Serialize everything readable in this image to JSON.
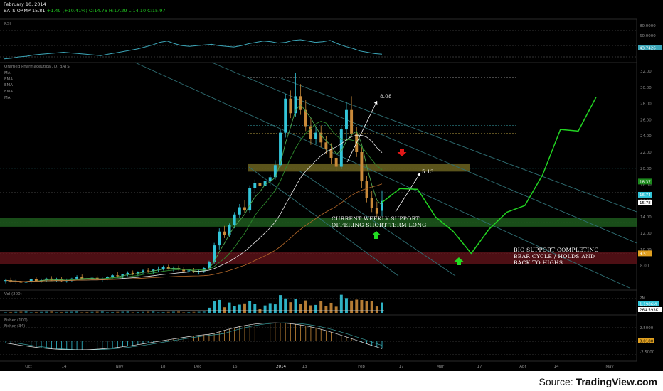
{
  "header": {
    "date": "February 10, 2014",
    "symbol": "BATS:ORMP",
    "last": "15.81",
    "change": "+1.49 (+10.41%)",
    "open": "O:14.76",
    "high": "H:17.29",
    "low": "L:14.10",
    "close": "C:15.97"
  },
  "panes": {
    "rsi": {
      "label": "RSI",
      "ticks": [
        "80.0000",
        "60.0000",
        "40.0000"
      ],
      "value": "43.7426"
    },
    "main": {
      "label": "Oramed Pharmaceutical, D, BATS",
      "indicators": [
        "MA",
        "EMA",
        "EMA",
        "EMA",
        "MA"
      ],
      "ticks": [
        "32.00",
        "30.00",
        "28.00",
        "26.00",
        "24.00",
        "22.00",
        "20.00",
        "18.00",
        "16.00",
        "14.00",
        "12.00",
        "10.00",
        "8.00"
      ],
      "badges": [
        "18.37",
        "16.74",
        "15.78",
        "9.51"
      ]
    },
    "volume": {
      "label": "Vol (200)",
      "ticks": [
        "2M",
        "1.1986M",
        "264.593K"
      ]
    },
    "fisher": {
      "labels": [
        "Fisher (100)",
        "Fisher (34)"
      ],
      "ticks": [
        "2.5000",
        "0.0180",
        "-2.5000"
      ]
    }
  },
  "xaxis": [
    "Oct",
    "14",
    "Nov",
    "18",
    "Dec",
    "16",
    "2014",
    "13",
    "Feb",
    "17",
    "Mar",
    "17",
    "Apr",
    "14",
    "May"
  ],
  "annotations": {
    "target_high": "8.08",
    "target_low": "5.13",
    "weekly_support": [
      "CURRENT WEEKLY SUPPORT",
      "OFFERING SHORT TERM LONG"
    ],
    "big_support": [
      "BIG SUPPORT COMPLETING",
      "BEAR CYCLE / HOLDS AND",
      "BACK TO HIGHS"
    ]
  },
  "colors": {
    "background": "#000000",
    "up_candle": "#33c5d9",
    "down_candle": "#c98a3a",
    "rsi_line": "#3ca6b8",
    "projection": "#22d322",
    "resistance_zone": "#6b6320",
    "support_zone": "#1d5a1d",
    "big_support_zone": "#5a1218",
    "channel": "#2f6f74",
    "up_arrow": "#22dd22",
    "down_arrow": "#e01818"
  },
  "source": {
    "prefix": "Source: ",
    "brand": "TradingView.com"
  },
  "chart_data": {
    "type": "candlestick",
    "series": [
      {
        "name": "ORMP",
        "values": [
          {
            "o": 6.1,
            "h": 6.4,
            "l": 5.8,
            "c": 6.2
          },
          {
            "o": 6.2,
            "h": 6.5,
            "l": 5.9,
            "c": 6.0
          },
          {
            "o": 6.0,
            "h": 6.3,
            "l": 5.7,
            "c": 6.1
          },
          {
            "o": 6.1,
            "h": 6.3,
            "l": 5.8,
            "c": 5.9
          },
          {
            "o": 5.9,
            "h": 6.2,
            "l": 5.6,
            "c": 6.0
          },
          {
            "o": 6.0,
            "h": 6.4,
            "l": 5.8,
            "c": 6.3
          },
          {
            "o": 6.3,
            "h": 6.6,
            "l": 6.0,
            "c": 6.1
          },
          {
            "o": 6.1,
            "h": 6.4,
            "l": 5.9,
            "c": 6.2
          },
          {
            "o": 6.2,
            "h": 6.5,
            "l": 6.0,
            "c": 6.4
          },
          {
            "o": 6.4,
            "h": 6.7,
            "l": 6.1,
            "c": 6.2
          },
          {
            "o": 6.2,
            "h": 6.5,
            "l": 6.0,
            "c": 6.3
          },
          {
            "o": 6.3,
            "h": 6.6,
            "l": 6.0,
            "c": 6.1
          },
          {
            "o": 6.1,
            "h": 6.4,
            "l": 5.9,
            "c": 6.2
          },
          {
            "o": 6.2,
            "h": 6.5,
            "l": 6.0,
            "c": 6.4
          },
          {
            "o": 6.4,
            "h": 6.8,
            "l": 6.2,
            "c": 6.6
          },
          {
            "o": 6.6,
            "h": 6.9,
            "l": 6.3,
            "c": 6.4
          },
          {
            "o": 6.4,
            "h": 6.7,
            "l": 6.1,
            "c": 6.3
          },
          {
            "o": 6.3,
            "h": 6.6,
            "l": 6.0,
            "c": 6.5
          },
          {
            "o": 6.5,
            "h": 6.8,
            "l": 6.2,
            "c": 6.3
          },
          {
            "o": 6.3,
            "h": 6.6,
            "l": 6.0,
            "c": 6.4
          },
          {
            "o": 6.4,
            "h": 6.7,
            "l": 6.2,
            "c": 6.6
          },
          {
            "o": 6.6,
            "h": 7.0,
            "l": 6.4,
            "c": 6.8
          },
          {
            "o": 6.8,
            "h": 7.2,
            "l": 6.5,
            "c": 6.7
          },
          {
            "o": 6.7,
            "h": 7.0,
            "l": 6.4,
            "c": 6.9
          },
          {
            "o": 6.9,
            "h": 7.3,
            "l": 6.7,
            "c": 7.1
          },
          {
            "o": 7.1,
            "h": 7.4,
            "l": 6.8,
            "c": 7.0
          },
          {
            "o": 7.0,
            "h": 7.3,
            "l": 6.7,
            "c": 7.2
          },
          {
            "o": 7.2,
            "h": 7.6,
            "l": 7.0,
            "c": 7.4
          },
          {
            "o": 7.4,
            "h": 7.7,
            "l": 7.1,
            "c": 7.3
          },
          {
            "o": 7.3,
            "h": 7.6,
            "l": 7.0,
            "c": 7.5
          },
          {
            "o": 7.5,
            "h": 7.9,
            "l": 7.2,
            "c": 7.6
          },
          {
            "o": 7.6,
            "h": 8.0,
            "l": 7.4,
            "c": 7.8
          },
          {
            "o": 7.8,
            "h": 8.1,
            "l": 7.5,
            "c": 7.6
          },
          {
            "o": 7.6,
            "h": 7.9,
            "l": 7.3,
            "c": 7.7
          },
          {
            "o": 7.7,
            "h": 8.0,
            "l": 7.4,
            "c": 7.5
          },
          {
            "o": 7.5,
            "h": 7.8,
            "l": 7.2,
            "c": 7.3
          },
          {
            "o": 7.3,
            "h": 7.6,
            "l": 7.0,
            "c": 7.4
          },
          {
            "o": 7.4,
            "h": 7.7,
            "l": 7.1,
            "c": 7.2
          },
          {
            "o": 7.2,
            "h": 7.5,
            "l": 6.9,
            "c": 7.3
          },
          {
            "o": 7.3,
            "h": 7.8,
            "l": 7.1,
            "c": 7.7
          },
          {
            "o": 7.7,
            "h": 8.6,
            "l": 7.5,
            "c": 8.4
          },
          {
            "o": 8.4,
            "h": 10.8,
            "l": 8.2,
            "c": 10.5
          },
          {
            "o": 10.5,
            "h": 12.6,
            "l": 10.0,
            "c": 12.2
          },
          {
            "o": 12.2,
            "h": 12.9,
            "l": 11.4,
            "c": 11.8
          },
          {
            "o": 11.8,
            "h": 13.2,
            "l": 11.5,
            "c": 13.0
          },
          {
            "o": 13.0,
            "h": 14.6,
            "l": 12.6,
            "c": 14.3
          },
          {
            "o": 14.3,
            "h": 15.6,
            "l": 13.9,
            "c": 15.2
          },
          {
            "o": 15.2,
            "h": 16.1,
            "l": 14.5,
            "c": 14.8
          },
          {
            "o": 14.8,
            "h": 17.9,
            "l": 14.5,
            "c": 17.6
          },
          {
            "o": 17.6,
            "h": 18.6,
            "l": 16.9,
            "c": 18.2
          },
          {
            "o": 18.2,
            "h": 19.0,
            "l": 17.4,
            "c": 17.8
          },
          {
            "o": 17.8,
            "h": 18.7,
            "l": 17.2,
            "c": 18.4
          },
          {
            "o": 18.4,
            "h": 19.2,
            "l": 17.9,
            "c": 18.9
          },
          {
            "o": 18.9,
            "h": 21.0,
            "l": 18.6,
            "c": 20.4
          },
          {
            "o": 20.4,
            "h": 24.8,
            "l": 20.2,
            "c": 24.4
          },
          {
            "o": 24.4,
            "h": 29.2,
            "l": 23.8,
            "c": 28.6
          },
          {
            "o": 28.6,
            "h": 29.6,
            "l": 26.2,
            "c": 26.8
          },
          {
            "o": 26.8,
            "h": 31.8,
            "l": 26.4,
            "c": 28.9
          },
          {
            "o": 28.9,
            "h": 30.4,
            "l": 26.6,
            "c": 27.2
          },
          {
            "o": 27.2,
            "h": 28.4,
            "l": 24.6,
            "c": 25.2
          },
          {
            "o": 25.2,
            "h": 26.2,
            "l": 22.9,
            "c": 23.6
          },
          {
            "o": 23.6,
            "h": 25.1,
            "l": 23.0,
            "c": 24.4
          },
          {
            "o": 24.4,
            "h": 25.3,
            "l": 22.6,
            "c": 23.2
          },
          {
            "o": 23.2,
            "h": 24.0,
            "l": 21.8,
            "c": 22.4
          },
          {
            "o": 22.4,
            "h": 23.1,
            "l": 20.6,
            "c": 21.3
          },
          {
            "o": 21.3,
            "h": 21.8,
            "l": 19.7,
            "c": 20.2
          },
          {
            "o": 20.2,
            "h": 25.2,
            "l": 19.9,
            "c": 24.8
          },
          {
            "o": 24.8,
            "h": 28.2,
            "l": 23.6,
            "c": 27.2
          },
          {
            "o": 27.2,
            "h": 28.9,
            "l": 23.9,
            "c": 24.3
          },
          {
            "o": 24.3,
            "h": 25.1,
            "l": 21.4,
            "c": 22.0
          },
          {
            "o": 22.0,
            "h": 22.6,
            "l": 17.6,
            "c": 18.4
          },
          {
            "o": 18.4,
            "h": 19.1,
            "l": 15.8,
            "c": 16.3
          },
          {
            "o": 16.3,
            "h": 17.2,
            "l": 14.6,
            "c": 15.1
          },
          {
            "o": 15.1,
            "h": 15.9,
            "l": 14.0,
            "c": 14.4
          },
          {
            "o": 14.76,
            "h": 17.29,
            "l": 14.1,
            "c": 15.97
          }
        ]
      }
    ],
    "ylim": [
      7,
      32
    ],
    "projection_path": [
      {
        "x": "2014-02-10",
        "y": 15.8
      },
      {
        "x": "2014-02-17",
        "y": 17.5
      },
      {
        "x": "2014-02-24",
        "y": 17.4
      },
      {
        "x": "2014-03-03",
        "y": 14.0
      },
      {
        "x": "2014-03-10",
        "y": 12.2
      },
      {
        "x": "2014-03-17",
        "y": 9.5
      },
      {
        "x": "2014-03-24",
        "y": 12.5
      },
      {
        "x": "2014-03-31",
        "y": 14.6
      },
      {
        "x": "2014-04-07",
        "y": 15.4
      },
      {
        "x": "2014-04-14",
        "y": 19.2
      },
      {
        "x": "2014-04-21",
        "y": 24.8
      },
      {
        "x": "2014-04-28",
        "y": 24.6
      },
      {
        "x": "2014-05-05",
        "y": 28.8
      }
    ],
    "zones": [
      {
        "name": "resistance",
        "from": 19.6,
        "to": 20.6
      },
      {
        "name": "weekly-support",
        "from": 12.8,
        "to": 13.9
      },
      {
        "name": "big-support",
        "from": 8.2,
        "to": 9.7
      }
    ],
    "rsi": [
      37,
      38,
      40,
      41,
      43,
      44,
      45,
      46,
      47,
      46,
      45,
      44,
      43,
      42,
      44,
      46,
      48,
      50,
      52,
      55,
      58,
      62,
      64,
      60,
      57,
      56,
      57,
      58,
      59,
      57,
      56,
      55,
      57,
      60,
      62,
      64,
      63,
      61,
      62,
      65,
      66,
      64,
      62,
      63,
      65,
      60,
      56,
      53,
      49,
      47,
      45,
      44
    ],
    "volume_scale_max_millions": 2
  }
}
